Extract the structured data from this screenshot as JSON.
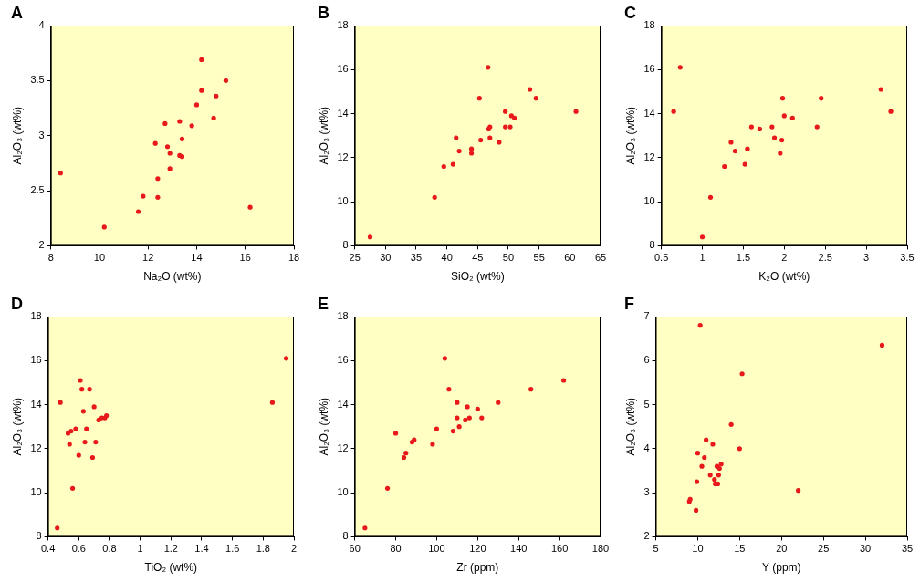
{
  "chart_data": [
    {
      "type": "scatter",
      "title": "A",
      "x_label": "Na₂O (wt%)",
      "y_label": "Al₂O₃ (wt%)",
      "x": [
        8.4,
        10.2,
        11.6,
        11.8,
        12.3,
        12.4,
        12.4,
        12.7,
        12.8,
        12.9,
        12.9,
        13.3,
        13.3,
        13.4,
        13.4,
        13.8,
        14.0,
        14.2,
        14.2,
        14.7,
        14.8,
        15.2,
        16.2
      ],
      "values": [
        2.66,
        2.17,
        2.31,
        2.45,
        2.93,
        2.44,
        2.61,
        3.11,
        2.9,
        2.84,
        2.7,
        2.82,
        3.13,
        2.97,
        2.81,
        3.09,
        3.28,
        3.41,
        3.69,
        3.16,
        3.36,
        3.5,
        2.35
      ],
      "xlim": [
        8,
        18
      ],
      "xticks": [
        8,
        10,
        12,
        14,
        16,
        18
      ],
      "ylim": [
        2,
        4
      ],
      "yticks": [
        2,
        2.5,
        3,
        3.5,
        4
      ],
      "grid": false,
      "color": "#e8191a",
      "marker": "circle"
    },
    {
      "type": "scatter",
      "title": "B",
      "x_label": "SiO₂ (wt%)",
      "y_label": "Al₂O₃ (wt%)",
      "x": [
        27.5,
        38,
        39.5,
        41,
        41.5,
        42,
        44,
        44,
        45.3,
        45.5,
        46.7,
        46.8,
        47,
        47,
        48.5,
        49.5,
        49.5,
        50.3,
        50.5,
        51,
        53.5,
        54.5,
        61
      ],
      "values": [
        8.4,
        10.2,
        11.6,
        11.7,
        12.9,
        12.3,
        12.2,
        12.4,
        14.7,
        12.8,
        16.1,
        13.3,
        13.4,
        12.9,
        12.7,
        13.4,
        14.1,
        13.4,
        13.9,
        13.8,
        15.1,
        14.7,
        14.1
      ],
      "xlim": [
        25,
        65
      ],
      "xticks": [
        25,
        30,
        35,
        40,
        45,
        50,
        55,
        60,
        65
      ],
      "ylim": [
        8,
        18
      ],
      "yticks": [
        8,
        10,
        12,
        14,
        16,
        18
      ],
      "grid": false,
      "color": "#e8191a",
      "marker": "circle"
    },
    {
      "type": "scatter",
      "title": "C",
      "x_label": "K₂O (wt%)",
      "y_label": "Al₂O₃ (wt%)",
      "x": [
        0.65,
        0.73,
        1.0,
        1.1,
        1.27,
        1.35,
        1.4,
        1.52,
        1.55,
        1.6,
        1.7,
        1.85,
        1.88,
        1.95,
        1.97,
        1.98,
        2.0,
        2.1,
        2.4,
        2.45,
        3.18,
        3.3
      ],
      "values": [
        14.1,
        16.1,
        8.4,
        10.2,
        11.6,
        12.7,
        12.3,
        11.7,
        12.4,
        13.4,
        13.3,
        13.4,
        12.9,
        12.2,
        12.8,
        14.7,
        13.9,
        13.8,
        13.4,
        14.7,
        15.1,
        14.1
      ],
      "xlim": [
        0.5,
        3.5
      ],
      "xticks": [
        0.5,
        1,
        1.5,
        2,
        2.5,
        3,
        3.5
      ],
      "ylim": [
        8,
        18
      ],
      "yticks": [
        8,
        10,
        12,
        14,
        16,
        18
      ],
      "grid": false,
      "color": "#e8191a",
      "marker": "circle"
    },
    {
      "type": "scatter",
      "title": "D",
      "x_label": "TiO₂ (wt%)",
      "y_label": "Al₂O₃ (wt%)",
      "x": [
        0.46,
        0.48,
        0.53,
        0.54,
        0.55,
        0.56,
        0.58,
        0.6,
        0.61,
        0.62,
        0.63,
        0.64,
        0.65,
        0.67,
        0.69,
        0.7,
        0.71,
        0.73,
        0.75,
        0.77,
        0.78,
        1.86,
        1.95
      ],
      "values": [
        8.4,
        14.1,
        12.7,
        12.2,
        12.8,
        10.2,
        12.9,
        11.7,
        15.1,
        14.7,
        13.7,
        12.3,
        12.9,
        14.7,
        11.6,
        13.9,
        12.3,
        13.3,
        13.4,
        13.4,
        13.5,
        14.1,
        16.1
      ],
      "xlim": [
        0.4,
        2
      ],
      "xticks": [
        0.4,
        0.6,
        0.8,
        1,
        1.2,
        1.4,
        1.6,
        1.8,
        2
      ],
      "ylim": [
        8,
        18
      ],
      "yticks": [
        8,
        10,
        12,
        14,
        16,
        18
      ],
      "grid": false,
      "color": "#e8191a",
      "marker": "circle"
    },
    {
      "type": "scatter",
      "title": "E",
      "x_label": "Zr (ppm)",
      "y_label": "Al₂O₃ (wt%)",
      "x": [
        65,
        76,
        80,
        84,
        85,
        88,
        89,
        98,
        100,
        104,
        106,
        108,
        110,
        110,
        111,
        114,
        115,
        116,
        120,
        122,
        130,
        146,
        162
      ],
      "values": [
        8.4,
        10.2,
        12.7,
        11.6,
        11.8,
        12.3,
        12.4,
        12.2,
        12.9,
        16.1,
        14.7,
        12.8,
        14.1,
        13.4,
        13.0,
        13.3,
        13.9,
        13.4,
        13.8,
        13.4,
        14.1,
        14.7,
        15.1
      ],
      "xlim": [
        60,
        180
      ],
      "xticks": [
        60,
        80,
        100,
        120,
        140,
        160,
        180
      ],
      "ylim": [
        8,
        18
      ],
      "yticks": [
        8,
        10,
        12,
        14,
        16,
        18
      ],
      "grid": false,
      "color": "#e8191a",
      "marker": "circle"
    },
    {
      "type": "scatter",
      "title": "F",
      "x_label": "Y (ppm)",
      "y_label": "Al₂O₃ (wt%)",
      "x": [
        9,
        9.1,
        9.8,
        9.9,
        10,
        10.3,
        10.5,
        10.8,
        11,
        11.5,
        11.8,
        12,
        12.1,
        12.3,
        12.4,
        12.5,
        12.6,
        12.8,
        14,
        15,
        15.3,
        22,
        32
      ],
      "values": [
        2.8,
        2.85,
        2.6,
        3.25,
        3.9,
        6.8,
        3.6,
        3.8,
        4.2,
        3.4,
        4.1,
        3.3,
        3.2,
        3.6,
        3.2,
        3.4,
        3.55,
        3.65,
        4.55,
        4.0,
        5.7,
        3.05,
        6.35
      ],
      "xlim": [
        5,
        35
      ],
      "xticks": [
        5,
        10,
        15,
        20,
        25,
        30,
        35
      ],
      "ylim": [
        2,
        7
      ],
      "yticks": [
        2,
        3,
        4,
        5,
        6,
        7
      ],
      "grid": false,
      "color": "#e8191a",
      "marker": "circle"
    }
  ]
}
